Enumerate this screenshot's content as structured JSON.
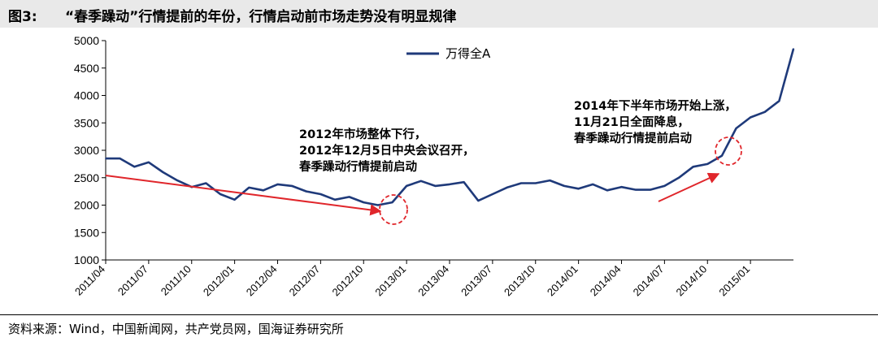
{
  "figure": {
    "label": "图3:",
    "title": "“春季躁动”行情提前的年份，行情启动前市场走势没有明显规律",
    "source": "资料来源：Wind，中国新闻网，共产党员网，国海证券研究所"
  },
  "colors": {
    "series": "#1f3a7a",
    "arrow": "#e0262b",
    "circle": "#e0262b",
    "axis": "#000000"
  },
  "annotations": [
    {
      "lines": [
        "2012年市场整体下行，",
        "2012年12月5日中央会议召开，",
        "春季躁动行情提前启动"
      ]
    },
    {
      "lines": [
        "2014年下半年市场开始上涨，",
        "11月21日全面降息，",
        "春季躁动行情提前启动"
      ]
    }
  ],
  "chart_data": {
    "type": "line",
    "title": "",
    "xlabel": "",
    "ylabel": "",
    "ylim": [
      1000,
      5000
    ],
    "yticks": [
      1000,
      1500,
      2000,
      2500,
      3000,
      3500,
      4000,
      4500,
      5000
    ],
    "xticks": [
      "2011/04",
      "2011/07",
      "2011/10",
      "2012/01",
      "2012/04",
      "2012/07",
      "2012/10",
      "2013/01",
      "2013/04",
      "2013/07",
      "2013/10",
      "2014/01",
      "2014/04",
      "2014/07",
      "2014/10",
      "2015/01"
    ],
    "legend": "top-center",
    "series": [
      {
        "name": "万得全A",
        "x": [
          "2011/04",
          "2011/05",
          "2011/06",
          "2011/07",
          "2011/08",
          "2011/09",
          "2011/10",
          "2011/11",
          "2011/12",
          "2012/01",
          "2012/02",
          "2012/03",
          "2012/04",
          "2012/05",
          "2012/06",
          "2012/07",
          "2012/08",
          "2012/09",
          "2012/10",
          "2012/11",
          "2012/12",
          "2013/01",
          "2013/02",
          "2013/03",
          "2013/04",
          "2013/05",
          "2013/06",
          "2013/07",
          "2013/08",
          "2013/09",
          "2013/10",
          "2013/11",
          "2013/12",
          "2014/01",
          "2014/02",
          "2014/03",
          "2014/04",
          "2014/05",
          "2014/06",
          "2014/07",
          "2014/08",
          "2014/09",
          "2014/10",
          "2014/11",
          "2014/12",
          "2015/01",
          "2015/02",
          "2015/03",
          "2015/04"
        ],
        "values": [
          2850,
          2850,
          2700,
          2780,
          2600,
          2450,
          2330,
          2400,
          2200,
          2100,
          2320,
          2270,
          2380,
          2350,
          2250,
          2200,
          2100,
          2150,
          2050,
          2000,
          2050,
          2350,
          2440,
          2350,
          2380,
          2420,
          2080,
          2200,
          2320,
          2400,
          2400,
          2450,
          2350,
          2300,
          2380,
          2270,
          2330,
          2280,
          2280,
          2350,
          2500,
          2700,
          2750,
          2900,
          3400,
          3600,
          3700,
          3900,
          4850
        ]
      }
    ]
  }
}
